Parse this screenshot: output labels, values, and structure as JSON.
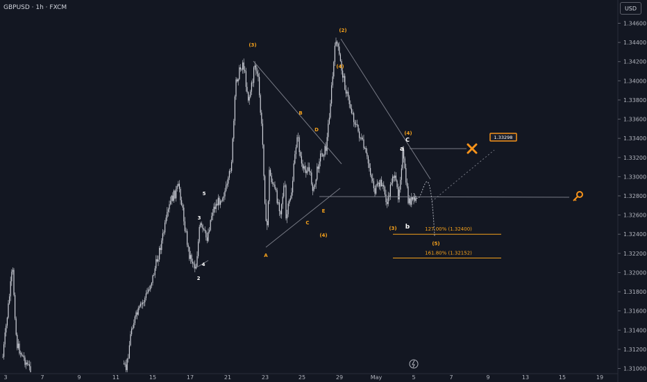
{
  "header": {
    "symbol_title": "GBPUSD · 1h · FXCM",
    "currency": "USD"
  },
  "colors": {
    "background": "#131722",
    "candles": "#d1d4dc",
    "wave_orange": "#f7a21b",
    "wave_white": "#ffffff",
    "projection": "#787b86",
    "target_orange": "#f7931a"
  },
  "chart_data": {
    "type": "candlestick",
    "title": "GBPUSD · 1h · FXCM",
    "y_ticks": [
      "1.34600",
      "1.34400",
      "1.34200",
      "1.34000",
      "1.33800",
      "1.33600",
      "1.33400",
      "1.33200",
      "1.33000",
      "1.32800",
      "1.32600",
      "1.32400",
      "1.32200",
      "1.32000",
      "1.31800",
      "1.31600",
      "1.31400",
      "1.31200",
      "1.31000"
    ],
    "x_ticks": [
      "3",
      "7",
      "9",
      "11",
      "15",
      "17",
      "21",
      "23",
      "25",
      "29",
      "May",
      "5",
      "7",
      "9",
      "13",
      "15",
      "19"
    ],
    "ylim": [
      1.3095,
      1.3475
    ],
    "price_path": [
      {
        "x": "3",
        "y": 1.3112
      },
      {
        "x": "3",
        "y": 1.3205
      },
      {
        "x": "3",
        "y": 1.3125
      },
      {
        "x": "7",
        "y": 1.31
      },
      {
        "x": "11",
        "y": 1.31
      },
      {
        "x": "11",
        "y": 1.3145
      },
      {
        "x": "15",
        "y": 1.3175
      },
      {
        "x": "15",
        "y": 1.3195
      },
      {
        "x": "15",
        "y": 1.323
      },
      {
        "x": "15",
        "y": 1.3275
      },
      {
        "x": "15",
        "y": 1.329
      },
      {
        "x": "15",
        "y": 1.326
      },
      {
        "x": "17",
        "y": 1.322
      },
      {
        "x": "17",
        "y": 1.3205
      },
      {
        "x": "17",
        "y": 1.325
      },
      {
        "x": "17",
        "y": 1.3235
      },
      {
        "x": "17",
        "y": 1.3265
      },
      {
        "x": "17",
        "y": 1.328
      },
      {
        "x": "21",
        "y": 1.329
      },
      {
        "x": "21",
        "y": 1.332
      },
      {
        "x": "21",
        "y": 1.34
      },
      {
        "x": "21",
        "y": 1.342
      },
      {
        "x": "21",
        "y": 1.338
      },
      {
        "x": "21",
        "y": 1.34
      },
      {
        "x": "21",
        "y": 1.342
      },
      {
        "x": "23",
        "y": 1.34
      },
      {
        "x": "23",
        "y": 1.334
      },
      {
        "x": "23",
        "y": 1.3235
      },
      {
        "x": "23",
        "y": 1.3305
      },
      {
        "x": "23",
        "y": 1.328
      },
      {
        "x": "23",
        "y": 1.3265
      },
      {
        "x": "23",
        "y": 1.3295
      },
      {
        "x": "25",
        "y": 1.3255
      },
      {
        "x": "25",
        "y": 1.3285
      },
      {
        "x": "25",
        "y": 1.3345
      },
      {
        "x": "25",
        "y": 1.3305
      },
      {
        "x": "25",
        "y": 1.331
      },
      {
        "x": "25",
        "y": 1.3285
      },
      {
        "x": "25",
        "y": 1.332
      },
      {
        "x": "29",
        "y": 1.333
      },
      {
        "x": "29",
        "y": 1.3395
      },
      {
        "x": "29",
        "y": 1.3445
      },
      {
        "x": "29",
        "y": 1.342
      },
      {
        "x": "29",
        "y": 1.3405
      },
      {
        "x": "29",
        "y": 1.3385
      },
      {
        "x": "29",
        "y": 1.3355
      },
      {
        "x": "May",
        "y": 1.3335
      },
      {
        "x": "May",
        "y": 1.331
      },
      {
        "x": "May",
        "y": 1.3285
      },
      {
        "x": "May",
        "y": 1.3295
      },
      {
        "x": "May",
        "y": 1.327
      },
      {
        "x": "May",
        "y": 1.3305
      },
      {
        "x": "May",
        "y": 1.328
      },
      {
        "x": "5",
        "y": 1.3325
      },
      {
        "x": "5",
        "y": 1.3275
      }
    ],
    "fib_levels": [
      {
        "label": "127.00% (1.32400)",
        "value": 1.324
      },
      {
        "label": "161.80% (1.32152)",
        "value": 1.32152
      }
    ],
    "target_label": "1.33298",
    "wave_labels": {
      "orange": [
        "(3)",
        "(2)",
        "(4)",
        "(3)",
        "(4)",
        "(5)",
        "B",
        "D",
        "C",
        "E",
        "A"
      ],
      "white": [
        "5",
        "3",
        "4",
        "2",
        "a",
        "C",
        "b"
      ]
    },
    "grid": false
  }
}
